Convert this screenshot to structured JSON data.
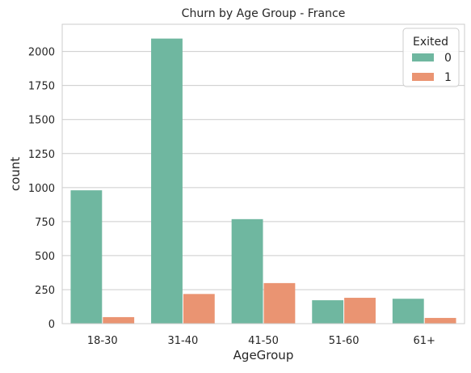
{
  "chart_data": {
    "type": "bar",
    "title": "Churn by Age Group - France",
    "xlabel": "AgeGroup",
    "ylabel": "count",
    "categories": [
      "18-30",
      "31-40",
      "41-50",
      "51-60",
      "61+"
    ],
    "ylim": [
      0,
      2200
    ],
    "yticks": [
      0,
      250,
      500,
      750,
      1000,
      1250,
      1500,
      1750,
      2000
    ],
    "grid": true,
    "legend": {
      "title": "Exited",
      "position": "top-right"
    },
    "series": [
      {
        "name": "0",
        "color": "#6fb7a0",
        "values": [
          980,
          2095,
          768,
          172,
          183
        ]
      },
      {
        "name": "1",
        "color": "#ea9472",
        "values": [
          48,
          218,
          298,
          190,
          42
        ]
      }
    ]
  }
}
